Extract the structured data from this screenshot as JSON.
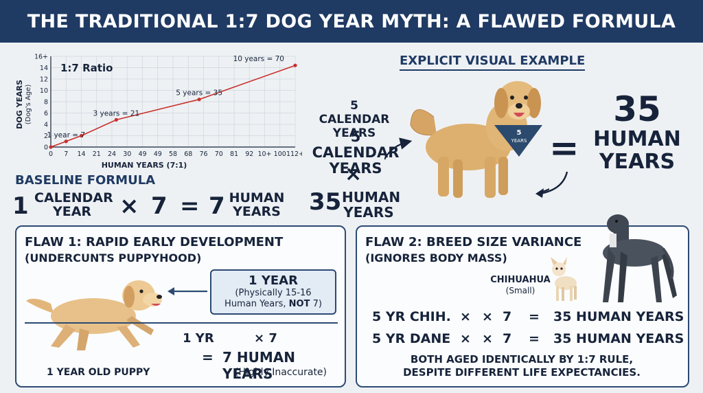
{
  "banner": {
    "title": "THE TRADITIONAL 1:7 DOG YEAR MYTH: A FLAWED FORMULA"
  },
  "chart_data": {
    "type": "line",
    "title": "1:7 Ratio",
    "xlabel": "HUMAN YEARS (7:1)",
    "ylabel": "DOG YEARS",
    "ylabel_sub": "(Dog's Age)",
    "x_tick_labels": [
      "0",
      "7",
      "14",
      "21",
      "24",
      "30",
      "49",
      "49",
      "58",
      "68",
      "76",
      "70",
      "81",
      "92",
      "10+",
      "100",
      "112+"
    ],
    "y_tick_labels": [
      "0",
      "2",
      "4",
      "6",
      "8",
      "10",
      "12",
      "14",
      "16+"
    ],
    "ylim": [
      0,
      16
    ],
    "grid": true,
    "series": [
      {
        "values": [
          {
            "x": 0,
            "y": 0
          },
          {
            "x": 7,
            "y": 1
          },
          {
            "x": 14,
            "y": 2
          },
          {
            "x": 30,
            "y": 4.8
          },
          {
            "x": 68,
            "y": 8.4
          },
          {
            "x": 112,
            "y": 14.4
          }
        ]
      }
    ],
    "annotations": [
      {
        "text": "1 year = 7",
        "x": 7,
        "y": 1
      },
      {
        "text": "3 years = 21",
        "x": 30,
        "y": 4.8
      },
      {
        "text": "5 years = 35",
        "x": 68,
        "y": 8.4
      },
      {
        "text": "10 years = 70",
        "x": 112,
        "y": 14.4
      }
    ],
    "line_color": "#c9302c"
  },
  "baseline": {
    "heading": "BASELINE FORMULA",
    "one": "1",
    "calendar": "CALENDAR",
    "year": "YEAR",
    "times": "×",
    "seven": "7",
    "equals": "=",
    "seven_result": "7",
    "human": "HUMAN",
    "years": "YEARS"
  },
  "example": {
    "heading": "EXPLICIT VISUAL EXAMPLE",
    "calendar_years_a": "5 CALENDAR YEARS",
    "five": "5",
    "calendar_years_b": "CALENDAR YEARS",
    "times": "×",
    "result_num": "35",
    "result_text": "HUMAN YEARS",
    "equals": "=",
    "answer_num": "35",
    "answer_line1": "HUMAN",
    "answer_line2": "YEARS",
    "bandana_number": "5",
    "bandana_text": "YEARS"
  },
  "flaw1": {
    "title": "FLAW 1: RAPID EARLY DEVELOPMENT",
    "subtitle": "(UNDERCUNTS PUPPYHOOD)",
    "callout_title": "1 YEAR",
    "callout_line1": "(Physically 15-16",
    "callout_line2": "Human Years,",
    "callout_not": "NOT",
    "callout_end": "7)",
    "row1_left": "1 YR",
    "row1_right": "× 7",
    "row2_eq": "=",
    "row2_text": "7 HUMAN YEARS",
    "row3": "(Highly Inaccurate)",
    "puppy_caption": "1 YEAR OLD PUPPY"
  },
  "flaw2": {
    "title": "FLAW 2: BREED SIZE VARIANCE",
    "subtitle": "(IGNORES BODY MASS)",
    "chihuahua_label": "CHIHUAHUA",
    "chihuahua_size": "(Small)",
    "row1_name": "5 YR CHIH.",
    "row2_name": "5 YR DANE",
    "times": "×",
    "seven": "7",
    "equals": "=",
    "result": "35 HUMAN YEARS",
    "conclusion_line1": "BOTH AGED IDENTICALLY BY 1:7 RULE,",
    "conclusion_line2": "DESPITE DIFFERENT LIFE EXPECTANCIES."
  }
}
